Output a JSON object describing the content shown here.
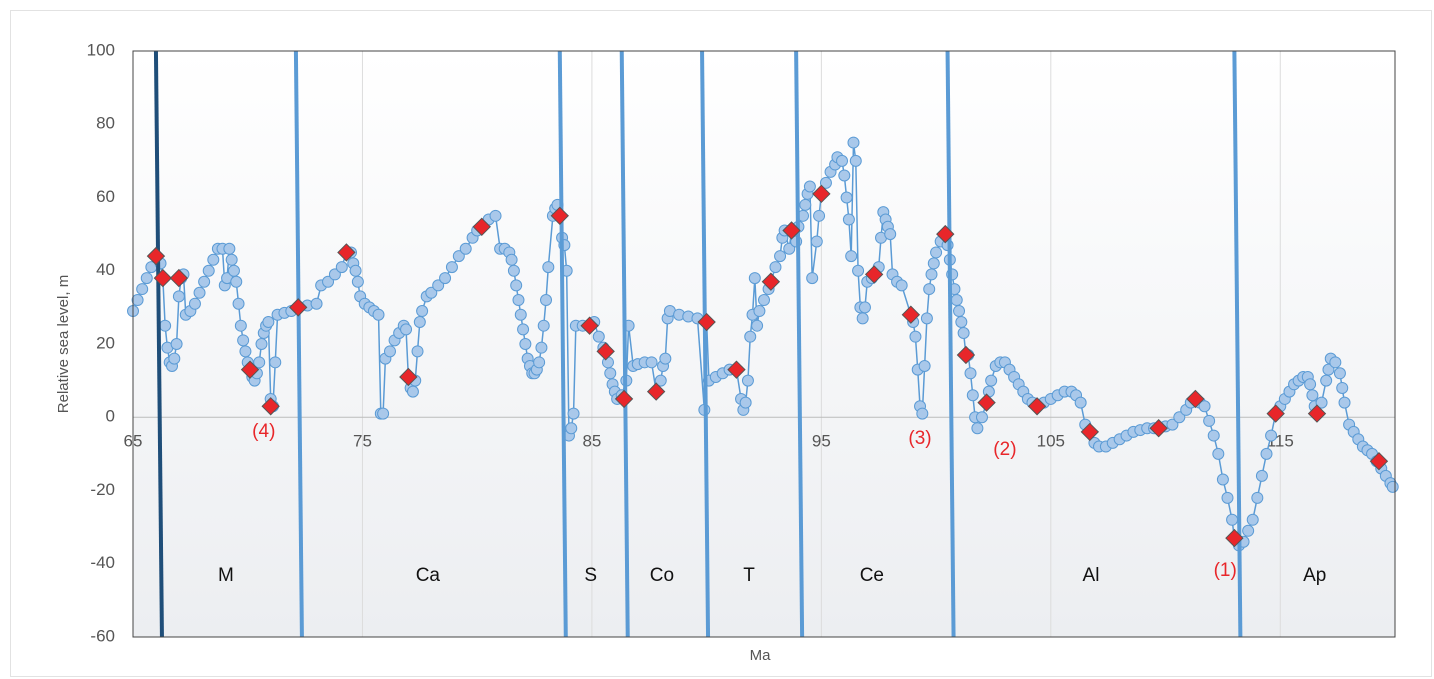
{
  "chart_data": {
    "type": "scatter",
    "x_label": "Ma",
    "y_label": "Relative sea level, m",
    "xlim": [
      65,
      120
    ],
    "xticks": [
      65,
      75,
      85,
      95,
      105,
      115
    ],
    "ylim": [
      -60,
      100
    ],
    "yticks": [
      -60,
      -40,
      -20,
      0,
      20,
      40,
      60,
      80,
      100
    ],
    "grid": true,
    "series": [
      {
        "color": "#5b9bd5",
        "fill": "#a9c8ea",
        "marker": "circle",
        "x": [
          65.0,
          65.2,
          65.4,
          65.6,
          65.8,
          66.0,
          66.2,
          66.3,
          66.4,
          66.5,
          66.6,
          66.7,
          66.8,
          66.9,
          67.0,
          67.1,
          67.2,
          67.3,
          67.5,
          67.7,
          67.9,
          68.1,
          68.3,
          68.5,
          68.7,
          68.9,
          69.0,
          69.1,
          69.2,
          69.3,
          69.4,
          69.5,
          69.6,
          69.7,
          69.8,
          69.9,
          70.0,
          70.1,
          70.2,
          70.3,
          70.4,
          70.5,
          70.6,
          70.7,
          70.8,
          70.9,
          71.0,
          71.1,
          71.2,
          71.3,
          71.6,
          71.9,
          72.2,
          72.6,
          73.0,
          73.2,
          73.5,
          73.8,
          74.1,
          74.3,
          74.5,
          74.6,
          74.7,
          74.8,
          74.9,
          75.1,
          75.3,
          75.5,
          75.7,
          75.8,
          75.9,
          76.0,
          76.2,
          76.4,
          76.6,
          76.8,
          76.9,
          77.0,
          77.1,
          77.2,
          77.3,
          77.4,
          77.5,
          77.6,
          77.8,
          78.0,
          78.3,
          78.6,
          78.9,
          79.2,
          79.5,
          79.8,
          80.0,
          80.2,
          80.5,
          80.8,
          81.0,
          81.2,
          81.4,
          81.5,
          81.6,
          81.7,
          81.8,
          81.9,
          82.0,
          82.1,
          82.2,
          82.3,
          82.4,
          82.5,
          82.6,
          82.7,
          82.8,
          82.9,
          83.0,
          83.1,
          83.3,
          83.4,
          83.5,
          83.6,
          83.7,
          83.8,
          83.9,
          84.0,
          84.1,
          84.2,
          84.3,
          84.6,
          84.9,
          85.1,
          85.3,
          85.5,
          85.6,
          85.7,
          85.8,
          85.9,
          86.0,
          86.1,
          86.3,
          86.5,
          86.6,
          86.8,
          87.0,
          87.3,
          87.6,
          87.8,
          88.0,
          88.1,
          88.2,
          88.3,
          88.4,
          88.8,
          89.2,
          89.6,
          89.9,
          90.0,
          90.1,
          90.4,
          90.7,
          91.0,
          91.3,
          91.5,
          91.6,
          91.7,
          91.8,
          91.9,
          92.0,
          92.1,
          92.2,
          92.3,
          92.5,
          92.7,
          92.8,
          93.0,
          93.2,
          93.3,
          93.4,
          93.6,
          93.7,
          93.9,
          94.0,
          94.2,
          94.3,
          94.4,
          94.5,
          94.6,
          94.8,
          94.9,
          95.0,
          95.2,
          95.4,
          95.6,
          95.7,
          95.9,
          96.0,
          96.1,
          96.2,
          96.3,
          96.4,
          96.5,
          96.6,
          96.7,
          96.8,
          96.9,
          97.0,
          97.2,
          97.3,
          97.5,
          97.6,
          97.7,
          97.8,
          97.9,
          98.0,
          98.1,
          98.3,
          98.5,
          98.9,
          99.0,
          99.1,
          99.2,
          99.3,
          99.4,
          99.5,
          99.6,
          99.7,
          99.8,
          99.9,
          100.0,
          100.2,
          100.4,
          100.5,
          100.6,
          100.7,
          100.8,
          100.9,
          101.0,
          101.1,
          101.2,
          101.3,
          101.4,
          101.5,
          101.6,
          101.7,
          101.8,
          102.0,
          102.2,
          102.3,
          102.4,
          102.6,
          102.8,
          103.0,
          103.2,
          103.4,
          103.6,
          103.8,
          104.0,
          104.2,
          104.4,
          104.7,
          105.0,
          105.3,
          105.6,
          105.9,
          106.1,
          106.3,
          106.5,
          106.7,
          106.9,
          107.1,
          107.4,
          107.7,
          108.0,
          108.3,
          108.6,
          108.9,
          109.2,
          109.5,
          109.7,
          110.0,
          110.3,
          110.6,
          110.9,
          111.1,
          111.3,
          111.5,
          111.7,
          111.9,
          112.1,
          112.3,
          112.5,
          112.7,
          112.9,
          113.0,
          113.2,
          113.4,
          113.6,
          113.8,
          114.0,
          114.2,
          114.4,
          114.6,
          114.8,
          115.0,
          115.2,
          115.4,
          115.6,
          115.8,
          116.0,
          116.2,
          116.3,
          116.4,
          116.5,
          116.6,
          116.8,
          117.0,
          117.1,
          117.2,
          117.4,
          117.6,
          117.7,
          117.8,
          118.0,
          118.2,
          118.4,
          118.6,
          118.8,
          119.0,
          119.2,
          119.4,
          119.6,
          119.8,
          119.9
        ],
        "values": [
          29,
          32,
          35,
          38,
          41,
          44,
          42,
          38,
          25,
          19,
          15,
          14,
          16,
          20,
          33,
          38,
          39,
          28,
          29,
          31,
          34,
          37,
          40,
          43,
          46,
          46,
          36,
          38,
          46,
          43,
          40,
          37,
          31,
          25,
          21,
          18,
          15,
          13,
          11,
          10,
          12,
          15,
          20,
          23,
          25,
          26,
          5,
          3,
          15,
          28,
          28.5,
          29,
          30,
          30.5,
          31,
          36,
          37,
          39,
          41,
          45,
          45,
          42,
          40,
          37,
          33,
          31,
          30,
          29,
          28,
          1,
          1,
          16,
          18,
          21,
          23,
          25,
          24,
          11,
          8,
          7,
          10,
          18,
          26,
          29,
          33,
          34,
          36,
          38,
          41,
          44,
          46,
          49,
          51,
          52,
          54,
          55,
          46,
          46,
          45,
          43,
          40,
          36,
          32,
          28,
          24,
          20,
          16,
          14,
          12,
          12,
          13,
          15,
          19,
          25,
          32,
          41,
          55,
          57,
          58,
          55,
          49,
          47,
          40,
          -5,
          -3,
          1,
          25,
          25,
          25,
          26,
          22,
          19,
          18,
          15,
          12,
          9,
          7,
          5,
          6,
          10,
          25,
          14,
          14.5,
          15,
          15,
          7,
          10,
          14,
          16,
          27,
          29,
          28,
          27.5,
          27,
          2,
          26,
          10,
          11,
          12,
          13,
          13,
          5,
          2,
          4,
          10,
          22,
          28,
          38,
          25,
          29,
          32,
          35,
          37,
          41,
          44,
          49,
          51,
          46,
          51,
          48,
          52,
          55,
          58,
          61,
          63,
          38,
          48,
          55,
          61,
          64,
          67,
          69,
          71,
          70,
          66,
          60,
          54,
          44,
          75,
          70,
          40,
          30,
          27,
          30,
          37,
          38,
          39,
          41,
          49,
          56,
          54,
          52,
          50,
          39,
          37,
          36,
          28,
          26,
          22,
          13,
          3,
          1,
          14,
          27,
          35,
          39,
          42,
          45,
          48,
          50,
          47,
          43,
          39,
          35,
          32,
          29,
          26,
          23,
          17,
          17,
          12,
          6,
          0,
          -3,
          0,
          4,
          7,
          10,
          14,
          15,
          15,
          13,
          11,
          9,
          7,
          5,
          4,
          3,
          4,
          5,
          6,
          7,
          7,
          6,
          4,
          -2,
          -4,
          -7,
          -8,
          -8,
          -7,
          -6,
          -5,
          -4,
          -3.5,
          -3,
          -3,
          -3,
          -2.5,
          -2,
          0,
          2,
          4,
          5,
          4,
          3,
          -1,
          -5,
          -10,
          -17,
          -22,
          -28,
          -33,
          -35,
          -34,
          -31,
          -28,
          -22,
          -16,
          -10,
          -5,
          1,
          3,
          5,
          7,
          9,
          10,
          11,
          11,
          9,
          6,
          3,
          1,
          4,
          10,
          13,
          16,
          15,
          12,
          8,
          4,
          -2,
          -4,
          -6,
          -8,
          -9,
          -10,
          -12,
          -14,
          -16,
          -18,
          -19
        ]
      },
      {
        "color": "#e8262a",
        "marker": "diamond",
        "x": [
          66.0,
          66.3,
          67.0,
          70.1,
          71.0,
          72.2,
          74.3,
          77.0,
          80.2,
          83.6,
          84.9,
          85.6,
          86.4,
          87.8,
          90.0,
          91.3,
          92.8,
          93.7,
          95.0,
          97.3,
          98.9,
          100.4,
          101.3,
          102.2,
          104.4,
          106.7,
          109.7,
          111.3,
          113.0,
          114.8,
          116.6,
          119.3
        ],
        "values": [
          44,
          38,
          38,
          13,
          3,
          30,
          45,
          11,
          52,
          55,
          25,
          18,
          5,
          7,
          26,
          13,
          37,
          51,
          61,
          39,
          28,
          50,
          17,
          4,
          3,
          -4,
          -3,
          5,
          -33,
          1,
          1,
          -12
        ]
      }
    ],
    "boundaries": [
      66.0,
      72.1,
      83.6,
      86.3,
      89.8,
      93.9,
      100.5,
      113.0
    ],
    "boundary_colors": [
      "#1f4e79",
      "#5b9bd5",
      "#5b9bd5",
      "#5b9bd5",
      "#5b9bd5",
      "#5b9bd5",
      "#5b9bd5",
      "#5b9bd5"
    ],
    "stages": [
      "M",
      "Ca",
      "S",
      "Co",
      "T",
      "Ce",
      "Al",
      "Ap"
    ],
    "annotations": [
      {
        "text": "(4)",
        "x": 70.7,
        "y": -4
      },
      {
        "text": "(3)",
        "x": 99.3,
        "y": -6
      },
      {
        "text": "(2)",
        "x": 103.0,
        "y": -9
      },
      {
        "text": "(1)",
        "x": 112.6,
        "y": -42
      }
    ],
    "annotation_color": "#e8262a"
  }
}
